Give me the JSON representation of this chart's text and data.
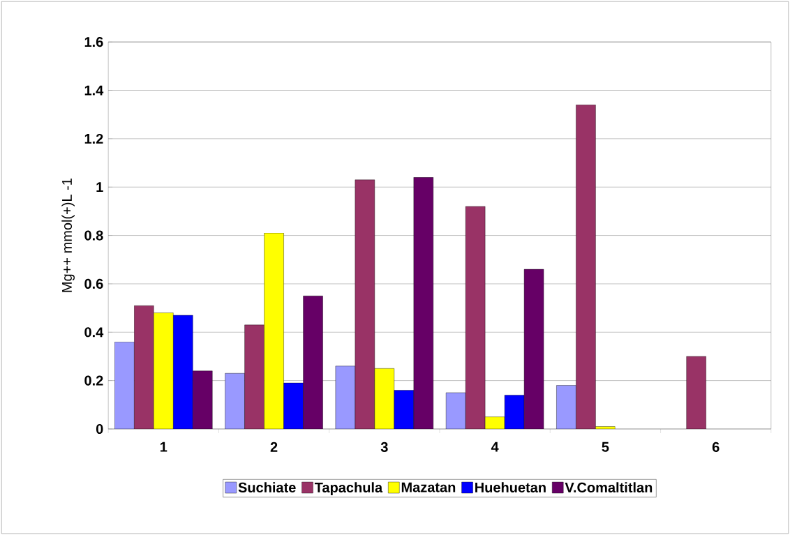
{
  "chart_data": {
    "type": "bar",
    "ylabel": "Mg++ mmol(+)L -1",
    "categories": [
      "1",
      "2",
      "3",
      "4",
      "5",
      "6"
    ],
    "series": [
      {
        "name": "Suchiate",
        "color": "#9999ff",
        "values": [
          0.36,
          0.23,
          0.26,
          0.15,
          0.18,
          null
        ]
      },
      {
        "name": "Tapachula",
        "color": "#993366",
        "values": [
          0.51,
          0.43,
          1.03,
          0.92,
          1.34,
          0.3
        ]
      },
      {
        "name": "Mazatan",
        "color": "#ffff00",
        "values": [
          0.48,
          0.81,
          0.25,
          0.05,
          0.01,
          null
        ]
      },
      {
        "name": "Huehuetan",
        "color": "#0000ff",
        "values": [
          0.47,
          0.19,
          0.16,
          0.14,
          null,
          null
        ]
      },
      {
        "name": "V.Comaltitlan",
        "color": "#660066",
        "values": [
          0.24,
          0.55,
          1.04,
          0.66,
          null,
          null
        ]
      }
    ],
    "ylim": [
      0,
      1.6
    ],
    "yticks": [
      0,
      0.2,
      0.4,
      0.6,
      0.8,
      1,
      1.2,
      1.4,
      1.6
    ],
    "grid": "y",
    "legend": "bottom"
  }
}
